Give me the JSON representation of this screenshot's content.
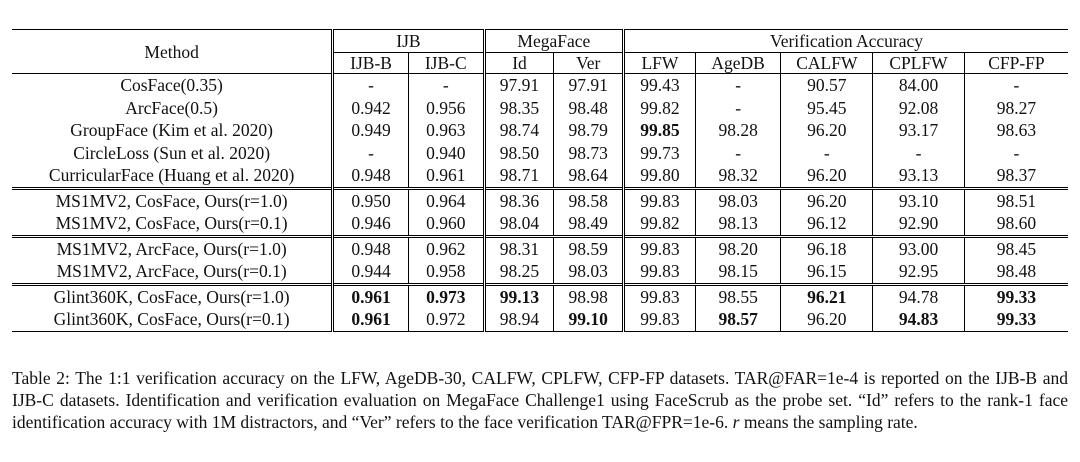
{
  "header": {
    "method": "Method",
    "groups": [
      "IJB",
      "MegaFace",
      "Verification Accuracy"
    ],
    "subcolumns": [
      "IJB-B",
      "IJB-C",
      "Id",
      "Ver",
      "LFW",
      "AgeDB",
      "CALFW",
      "CPLFW",
      "CFP-FP"
    ]
  },
  "sections": [
    [
      {
        "method": "CosFace(0.35)",
        "values": [
          "-",
          "-",
          "97.91",
          "97.91",
          "99.43",
          "-",
          "90.57",
          "84.00",
          "-"
        ],
        "bold": []
      },
      {
        "method": "ArcFace(0.5)",
        "values": [
          "0.942",
          "0.956",
          "98.35",
          "98.48",
          "99.82",
          "-",
          "95.45",
          "92.08",
          "98.27"
        ],
        "bold": []
      },
      {
        "method": "GroupFace (Kim et al. 2020)",
        "values": [
          "0.949",
          "0.963",
          "98.74",
          "98.79",
          "99.85",
          "98.28",
          "96.20",
          "93.17",
          "98.63"
        ],
        "bold": [
          4
        ]
      },
      {
        "method": "CircleLoss (Sun et al. 2020)",
        "values": [
          "-",
          "0.940",
          "98.50",
          "98.73",
          "99.73",
          "-",
          "-",
          "-",
          "-"
        ],
        "bold": []
      },
      {
        "method": "CurricularFace (Huang et al. 2020)",
        "values": [
          "0.948",
          "0.961",
          "98.71",
          "98.64",
          "99.80",
          "98.32",
          "96.20",
          "93.13",
          "98.37"
        ],
        "bold": []
      }
    ],
    [
      {
        "method": "MS1MV2, CosFace, Ours(r=1.0)",
        "values": [
          "0.950",
          "0.964",
          "98.36",
          "98.58",
          "99.83",
          "98.03",
          "96.20",
          "93.10",
          "98.51"
        ],
        "bold": []
      },
      {
        "method": "MS1MV2, CosFace, Ours(r=0.1)",
        "values": [
          "0.946",
          "0.960",
          "98.04",
          "98.49",
          "99.82",
          "98.13",
          "96.12",
          "92.90",
          "98.60"
        ],
        "bold": []
      }
    ],
    [
      {
        "method": "MS1MV2, ArcFace, Ours(r=1.0)",
        "values": [
          "0.948",
          "0.962",
          "98.31",
          "98.59",
          "99.83",
          "98.20",
          "96.18",
          "93.00",
          "98.45"
        ],
        "bold": []
      },
      {
        "method": "MS1MV2, ArcFace, Ours(r=0.1)",
        "values": [
          "0.944",
          "0.958",
          "98.25",
          "98.03",
          "99.83",
          "98.15",
          "96.15",
          "92.95",
          "98.48"
        ],
        "bold": []
      }
    ],
    [
      {
        "method": "Glint360K, CosFace, Ours(r=1.0)",
        "values": [
          "0.961",
          "0.973",
          "99.13",
          "98.98",
          "99.83",
          "98.55",
          "96.21",
          "94.78",
          "99.33"
        ],
        "bold": [
          0,
          1,
          2,
          6,
          8
        ]
      },
      {
        "method": "Glint360K, CosFace, Ours(r=0.1)",
        "values": [
          "0.961",
          "0.972",
          "98.94",
          "99.10",
          "99.83",
          "98.57",
          "96.20",
          "94.83",
          "99.33"
        ],
        "bold": [
          0,
          3,
          5,
          7,
          8
        ]
      }
    ]
  ],
  "caption": {
    "label": "Table 2:",
    "part1": " The 1:1 verification accuracy on the LFW, AgeDB-30, CALFW, CPLFW, CFP-FP datasets. TAR@FAR=1e-4 is reported on the IJB-B and IJB-C datasets. Identification and verification evaluation on MegaFace Challenge1 using FaceScrub as the probe set. “Id” refers to the rank-1 face identification accuracy with 1M distractors, and “Ver” refers to the face verification TAR@FPR=1e-6. ",
    "symbol": "r",
    "part2": " means the sampling rate."
  }
}
